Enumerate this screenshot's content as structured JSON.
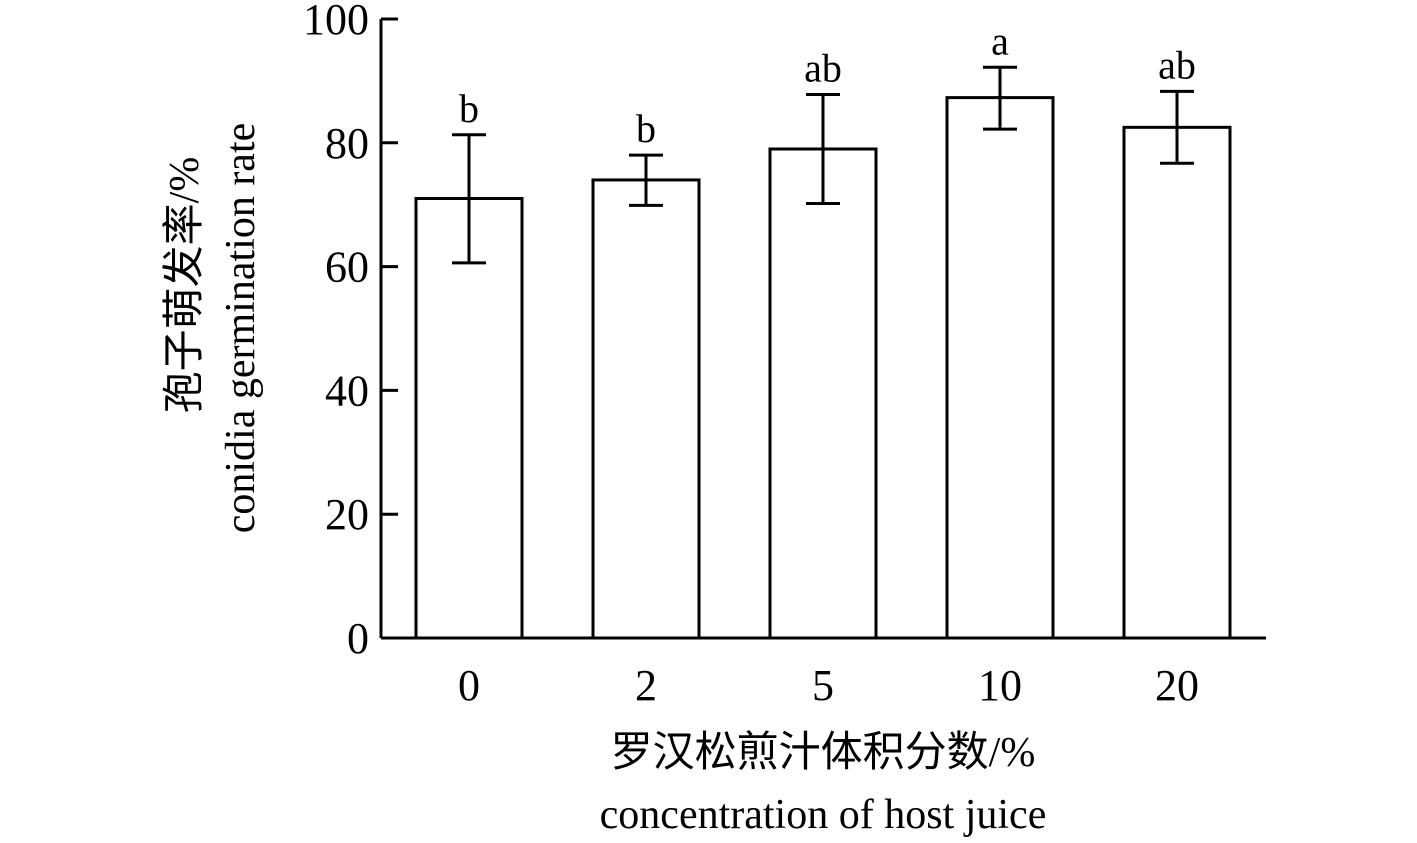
{
  "chart_data": {
    "type": "bar",
    "categories": [
      "0",
      "2",
      "5",
      "10",
      "20"
    ],
    "values": [
      71,
      74,
      79,
      87.3,
      82.5
    ],
    "error_bars": [
      [
        60.6,
        81.3
      ],
      [
        69.9,
        78
      ],
      [
        70.2,
        87.8
      ],
      [
        82.2,
        92.2
      ],
      [
        76.7,
        88.3
      ]
    ],
    "significance_letters": [
      "b",
      "b",
      "ab",
      "a",
      "ab"
    ],
    "ylim": [
      0,
      100
    ],
    "yticks": [
      0,
      20,
      40,
      60,
      80,
      100
    ],
    "xlabel_cn": "罗汉松煎汁体积分数/%",
    "xlabel_en": "concentration of host juice",
    "ylabel_cn": "孢子萌发率/%",
    "ylabel_en": "conidia germination rate",
    "grid": false,
    "legend": "none",
    "colors": {
      "bar_fill": "#ffffff",
      "stroke": "#000000"
    }
  }
}
